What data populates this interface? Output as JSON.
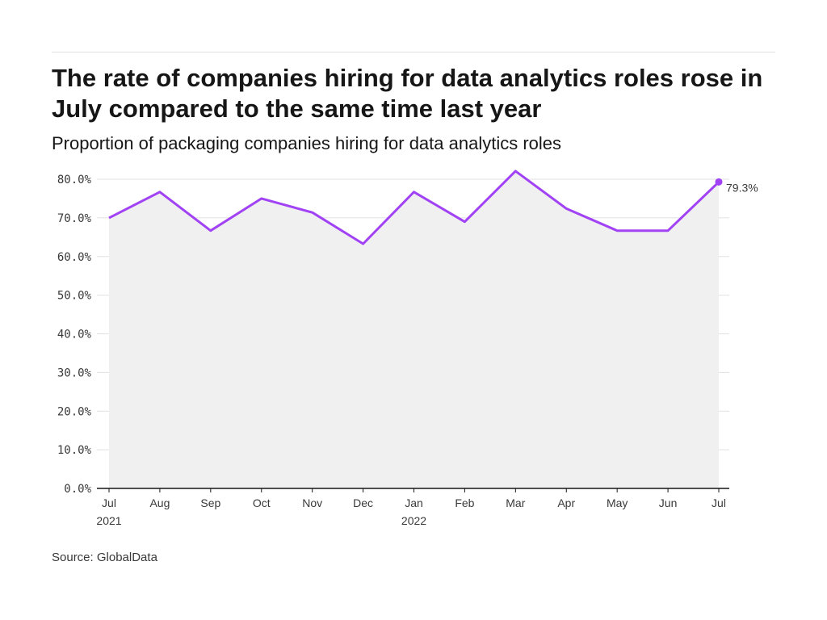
{
  "title": "The rate of companies hiring for data analytics roles rose in July compared to the same time last year",
  "subtitle": "Proportion of packaging companies hiring for data analytics roles",
  "source": "Source: GlobalData",
  "colors": {
    "line": "#a142f4",
    "area": "#f0f0f0",
    "grid": "#e0e0e0",
    "axis": "#161616"
  },
  "chart_data": {
    "type": "area",
    "x": [
      "Jul",
      "Aug",
      "Sep",
      "Oct",
      "Nov",
      "Dec",
      "Jan",
      "Feb",
      "Mar",
      "Apr",
      "May",
      "Jun",
      "Jul"
    ],
    "x_sublabels": [
      "2021",
      "",
      "",
      "",
      "",
      "",
      "2022",
      "",
      "",
      "",
      "",
      "",
      ""
    ],
    "series": [
      {
        "values": [
          70.0,
          76.7,
          66.7,
          75.0,
          71.4,
          63.3,
          76.7,
          69.0,
          82.1,
          72.4,
          66.7,
          66.7,
          79.3
        ]
      }
    ],
    "yticks": [
      "0.0%",
      "10.0%",
      "20.0%",
      "30.0%",
      "40.0%",
      "50.0%",
      "60.0%",
      "70.0%",
      "80.0%"
    ],
    "ylim": [
      0,
      85
    ],
    "end_label": "79.3%",
    "grid": true
  }
}
